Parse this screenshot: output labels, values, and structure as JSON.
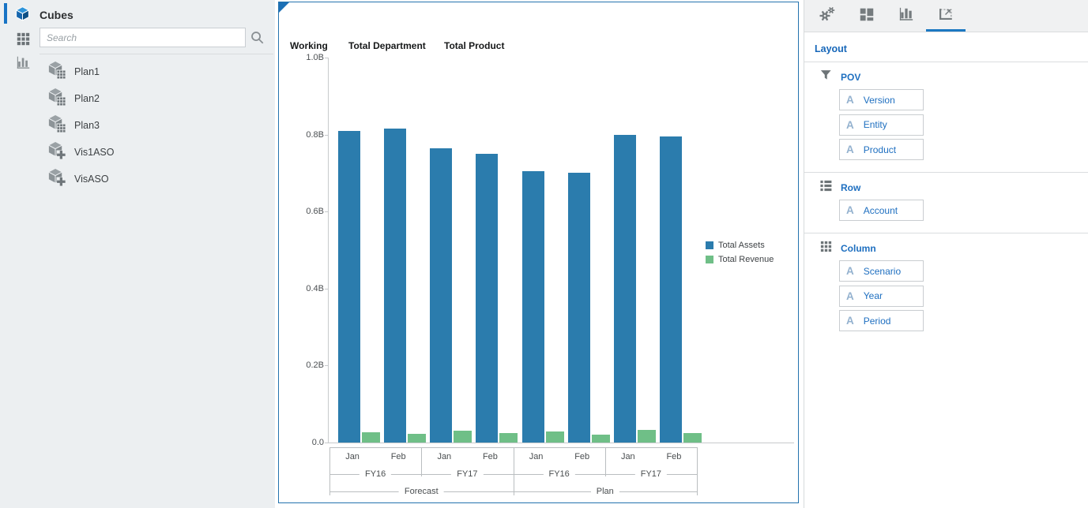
{
  "left_panel": {
    "title": "Cubes",
    "search_placeholder": "Search",
    "cubes": [
      {
        "label": "Plan1",
        "badge": "grid"
      },
      {
        "label": "Plan2",
        "badge": "grid"
      },
      {
        "label": "Plan3",
        "badge": "grid"
      },
      {
        "label": "Vis1ASO",
        "badge": "plus"
      },
      {
        "label": "VisASO",
        "badge": "plus"
      }
    ]
  },
  "chart_panel": {
    "headers": [
      "Working",
      "Total Department",
      "Total Product"
    ]
  },
  "chart_data": {
    "type": "bar",
    "title": "",
    "y_axis": {
      "ticks": [
        "1.0B",
        "0.8B",
        "0.6B",
        "0.4B",
        "0.2B",
        "0.0"
      ],
      "min": 0,
      "max": 1.0,
      "unit": "B"
    },
    "series": [
      {
        "name": "Total Assets",
        "color": "#2b7cad",
        "values": [
          0.81,
          0.815,
          0.765,
          0.75,
          0.705,
          0.7,
          0.8,
          0.795
        ]
      },
      {
        "name": "Total Revenue",
        "color": "#6fbf87",
        "values": [
          0.027,
          0.022,
          0.03,
          0.024,
          0.028,
          0.02,
          0.033,
          0.025
        ]
      }
    ],
    "x_axis": {
      "months": [
        "Jan",
        "Feb",
        "Jan",
        "Feb",
        "Jan",
        "Feb",
        "Jan",
        "Feb"
      ],
      "years": [
        {
          "label": "FY16",
          "span": 2
        },
        {
          "label": "FY17",
          "span": 2
        },
        {
          "label": "FY16",
          "span": 2
        },
        {
          "label": "FY17",
          "span": 2
        }
      ],
      "scenarios": [
        {
          "label": "Forecast",
          "span": 4
        },
        {
          "label": "Plan",
          "span": 4
        }
      ]
    },
    "legend_position": "right",
    "grid": false
  },
  "right_panel": {
    "tabs": [
      {
        "icon": "settings",
        "selected": false
      },
      {
        "icon": "tiles",
        "selected": false
      },
      {
        "icon": "chart",
        "selected": false
      },
      {
        "icon": "layout",
        "selected": true
      }
    ],
    "title": "Layout",
    "member_letter": "A",
    "sections": [
      {
        "label": "POV",
        "icon": "filter",
        "members": [
          "Version",
          "Entity",
          "Product"
        ]
      },
      {
        "label": "Row",
        "icon": "list",
        "members": [
          "Account"
        ]
      },
      {
        "label": "Column",
        "icon": "columns",
        "members": [
          "Scenario",
          "Year",
          "Period"
        ]
      }
    ]
  },
  "colors": {
    "accent_blue": "#1773c5",
    "panel_border_blue": "#2473ae",
    "link_blue": "#1e6fc0",
    "bar_blue": "#2b7cad",
    "bar_green": "#6fbf87",
    "left_panel_bg": "#eceff1"
  }
}
